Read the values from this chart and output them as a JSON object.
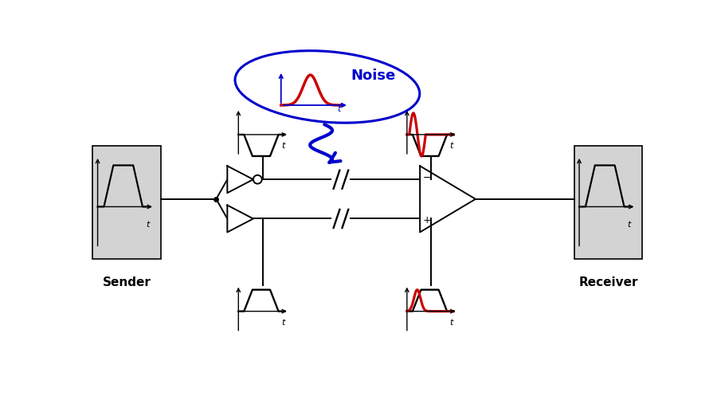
{
  "bg_color": "#ffffff",
  "gray_box_color": "#d3d3d3",
  "black": "#000000",
  "red": "#cc0000",
  "blue": "#0000cc",
  "sender_label": "Sender",
  "receiver_label": "Receiver",
  "noise_label": "Noise"
}
